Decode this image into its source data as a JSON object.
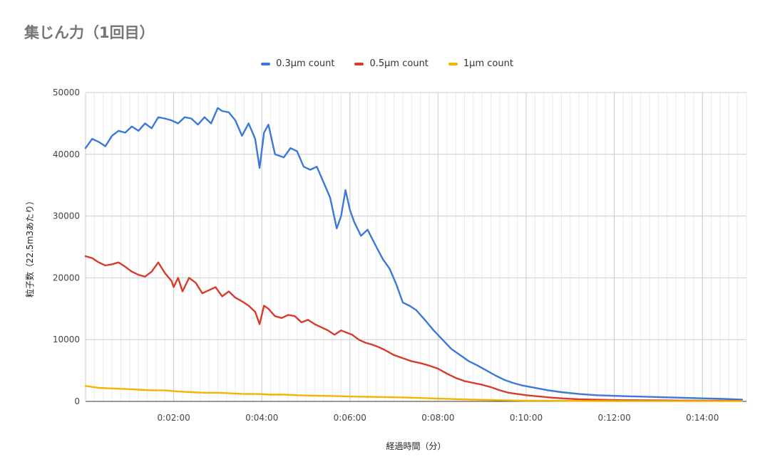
{
  "chart_data": {
    "type": "line",
    "title": "集じん力（1回目）",
    "xlabel": "経過時間（分）",
    "ylabel": "粒子数（22.5m3あたり）",
    "ylim": [
      0,
      50000
    ],
    "xlim": [
      "0:00:00",
      "0:15:00"
    ],
    "y_ticks": [
      "0",
      "10000",
      "20000",
      "30000",
      "40000",
      "50000"
    ],
    "x_ticks": [
      "0:02:00",
      "0:04:00",
      "0:06:00",
      "0:08:00",
      "0:10:00",
      "0:12:00",
      "0:14:00"
    ],
    "grid": true,
    "legend_position": "top",
    "x_unit": "minutes",
    "series": [
      {
        "name": "0.3µm count",
        "color": "#3c78d8",
        "x": [
          0,
          0.15,
          0.3,
          0.45,
          0.6,
          0.75,
          0.9,
          1.05,
          1.2,
          1.35,
          1.5,
          1.65,
          1.8,
          1.95,
          2.1,
          2.25,
          2.4,
          2.55,
          2.7,
          2.85,
          3.0,
          3.1,
          3.25,
          3.4,
          3.55,
          3.7,
          3.85,
          3.95,
          4.05,
          4.15,
          4.3,
          4.5,
          4.65,
          4.8,
          4.95,
          5.1,
          5.25,
          5.4,
          5.55,
          5.7,
          5.8,
          5.9,
          6.0,
          6.1,
          6.25,
          6.4,
          6.6,
          6.75,
          6.9,
          7.05,
          7.2,
          7.35,
          7.5,
          7.7,
          7.9,
          8.1,
          8.3,
          8.5,
          8.7,
          8.9,
          9.1,
          9.3,
          9.5,
          9.7,
          9.9,
          10.2,
          10.5,
          10.8,
          11.2,
          11.6,
          12.0,
          12.5,
          13.0,
          13.5,
          14.0,
          14.5,
          14.9
        ],
        "values": [
          41000,
          42500,
          42000,
          41300,
          43000,
          43800,
          43500,
          44500,
          43800,
          45000,
          44200,
          46000,
          45800,
          45500,
          45000,
          46000,
          45800,
          44800,
          46000,
          45000,
          47500,
          47000,
          46800,
          45500,
          43000,
          45000,
          42500,
          37800,
          43500,
          44800,
          40000,
          39500,
          41000,
          40500,
          38000,
          37500,
          38000,
          35500,
          33000,
          28000,
          30000,
          34200,
          31000,
          29000,
          26800,
          27800,
          25000,
          23000,
          21500,
          19000,
          16000,
          15500,
          14800,
          13200,
          11500,
          10000,
          8500,
          7500,
          6500,
          5800,
          5000,
          4200,
          3500,
          3000,
          2600,
          2200,
          1800,
          1500,
          1200,
          1000,
          900,
          800,
          700,
          600,
          500,
          400,
          300
        ]
      },
      {
        "name": "0.5µm count",
        "color": "#d83b2a",
        "x": [
          0,
          0.15,
          0.3,
          0.45,
          0.6,
          0.75,
          0.9,
          1.05,
          1.2,
          1.35,
          1.5,
          1.65,
          1.8,
          1.95,
          2.0,
          2.1,
          2.2,
          2.35,
          2.5,
          2.65,
          2.8,
          2.95,
          3.1,
          3.25,
          3.4,
          3.55,
          3.7,
          3.85,
          3.95,
          4.05,
          4.15,
          4.3,
          4.45,
          4.6,
          4.75,
          4.9,
          5.05,
          5.2,
          5.35,
          5.5,
          5.65,
          5.8,
          5.9,
          6.05,
          6.2,
          6.35,
          6.5,
          6.65,
          6.8,
          7.0,
          7.2,
          7.4,
          7.6,
          7.8,
          8.0,
          8.2,
          8.4,
          8.6,
          8.8,
          9.0,
          9.2,
          9.4,
          9.6,
          9.8,
          10.0,
          10.3,
          10.6,
          10.9,
          11.2,
          11.5,
          11.8,
          12.2,
          12.6,
          13.0,
          13.5,
          14.0,
          14.5,
          14.9
        ],
        "values": [
          23500,
          23200,
          22500,
          22000,
          22200,
          22500,
          21800,
          21000,
          20500,
          20200,
          21000,
          22500,
          20800,
          19500,
          18500,
          20000,
          17800,
          20000,
          19200,
          17500,
          18000,
          18500,
          17000,
          17800,
          16800,
          16200,
          15500,
          14500,
          12500,
          15500,
          15000,
          13800,
          13500,
          14000,
          13800,
          12800,
          13200,
          12500,
          12000,
          11500,
          10800,
          11500,
          11200,
          10800,
          10000,
          9500,
          9200,
          8800,
          8300,
          7500,
          7000,
          6500,
          6200,
          5800,
          5300,
          4500,
          3800,
          3300,
          3000,
          2700,
          2300,
          1800,
          1400,
          1200,
          1000,
          800,
          600,
          450,
          350,
          300,
          250,
          200,
          180,
          160,
          140,
          120,
          100,
          100
        ]
      },
      {
        "name": "1µm count",
        "color": "#f4b400",
        "x": [
          0,
          0.3,
          0.6,
          0.9,
          1.2,
          1.5,
          1.8,
          2.1,
          2.4,
          2.7,
          3.0,
          3.3,
          3.6,
          3.9,
          4.2,
          4.5,
          4.8,
          5.1,
          5.4,
          5.7,
          6.0,
          6.4,
          6.8,
          7.2,
          7.6,
          8.0,
          8.5,
          9.0,
          9.5,
          10.0,
          10.5,
          11.0,
          11.5,
          12.0,
          12.5,
          13.0,
          13.5,
          14.0,
          14.5,
          14.9
        ],
        "values": [
          2500,
          2200,
          2100,
          2000,
          1900,
          1800,
          1800,
          1600,
          1500,
          1400,
          1400,
          1300,
          1200,
          1200,
          1100,
          1100,
          1000,
          950,
          900,
          850,
          800,
          750,
          700,
          650,
          550,
          450,
          350,
          250,
          180,
          120,
          100,
          80,
          70,
          60,
          50,
          50,
          50,
          50,
          50,
          50
        ]
      }
    ]
  }
}
